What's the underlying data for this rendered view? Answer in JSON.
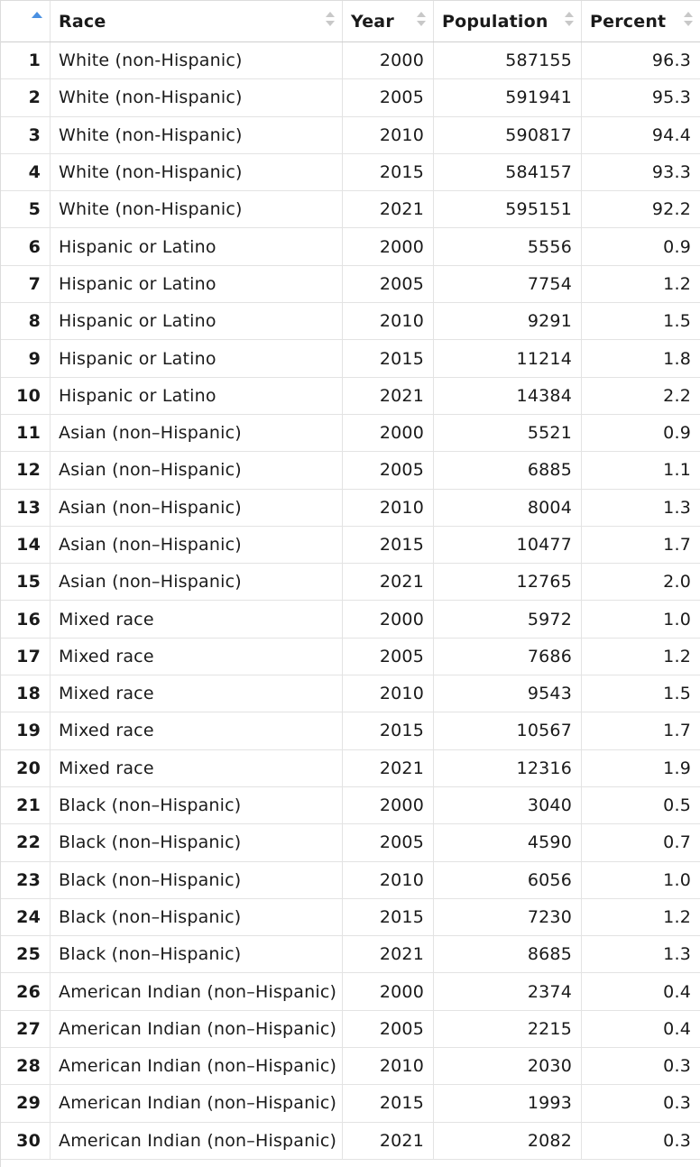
{
  "table": {
    "active_sort_color": "#4a90e2",
    "columns": [
      {
        "key": "race",
        "label": "Race"
      },
      {
        "key": "year",
        "label": "Year"
      },
      {
        "key": "population",
        "label": "Population"
      },
      {
        "key": "percent",
        "label": "Percent"
      }
    ],
    "rows": [
      {
        "n": "1",
        "race": "White (non-Hispanic)",
        "year": "2000",
        "population": "587155",
        "percent": "96.3"
      },
      {
        "n": "2",
        "race": "White (non-Hispanic)",
        "year": "2005",
        "population": "591941",
        "percent": "95.3"
      },
      {
        "n": "3",
        "race": "White (non-Hispanic)",
        "year": "2010",
        "population": "590817",
        "percent": "94.4"
      },
      {
        "n": "4",
        "race": "White (non-Hispanic)",
        "year": "2015",
        "population": "584157",
        "percent": "93.3"
      },
      {
        "n": "5",
        "race": "White (non-Hispanic)",
        "year": "2021",
        "population": "595151",
        "percent": "92.2"
      },
      {
        "n": "6",
        "race": "Hispanic or Latino",
        "year": "2000",
        "population": "5556",
        "percent": "0.9"
      },
      {
        "n": "7",
        "race": "Hispanic or Latino",
        "year": "2005",
        "population": "7754",
        "percent": "1.2"
      },
      {
        "n": "8",
        "race": "Hispanic or Latino",
        "year": "2010",
        "population": "9291",
        "percent": "1.5"
      },
      {
        "n": "9",
        "race": "Hispanic or Latino",
        "year": "2015",
        "population": "11214",
        "percent": "1.8"
      },
      {
        "n": "10",
        "race": "Hispanic or Latino",
        "year": "2021",
        "population": "14384",
        "percent": "2.2"
      },
      {
        "n": "11",
        "race": "Asian (non–Hispanic)",
        "year": "2000",
        "population": "5521",
        "percent": "0.9"
      },
      {
        "n": "12",
        "race": "Asian (non–Hispanic)",
        "year": "2005",
        "population": "6885",
        "percent": "1.1"
      },
      {
        "n": "13",
        "race": "Asian (non–Hispanic)",
        "year": "2010",
        "population": "8004",
        "percent": "1.3"
      },
      {
        "n": "14",
        "race": "Asian (non–Hispanic)",
        "year": "2015",
        "population": "10477",
        "percent": "1.7"
      },
      {
        "n": "15",
        "race": "Asian (non–Hispanic)",
        "year": "2021",
        "population": "12765",
        "percent": "2.0"
      },
      {
        "n": "16",
        "race": "Mixed race",
        "year": "2000",
        "population": "5972",
        "percent": "1.0"
      },
      {
        "n": "17",
        "race": "Mixed race",
        "year": "2005",
        "population": "7686",
        "percent": "1.2"
      },
      {
        "n": "18",
        "race": "Mixed race",
        "year": "2010",
        "population": "9543",
        "percent": "1.5"
      },
      {
        "n": "19",
        "race": "Mixed race",
        "year": "2015",
        "population": "10567",
        "percent": "1.7"
      },
      {
        "n": "20",
        "race": "Mixed race",
        "year": "2021",
        "population": "12316",
        "percent": "1.9"
      },
      {
        "n": "21",
        "race": "Black (non–Hispanic)",
        "year": "2000",
        "population": "3040",
        "percent": "0.5"
      },
      {
        "n": "22",
        "race": "Black (non–Hispanic)",
        "year": "2005",
        "population": "4590",
        "percent": "0.7"
      },
      {
        "n": "23",
        "race": "Black (non–Hispanic)",
        "year": "2010",
        "population": "6056",
        "percent": "1.0"
      },
      {
        "n": "24",
        "race": "Black (non–Hispanic)",
        "year": "2015",
        "population": "7230",
        "percent": "1.2"
      },
      {
        "n": "25",
        "race": "Black (non–Hispanic)",
        "year": "2021",
        "population": "8685",
        "percent": "1.3"
      },
      {
        "n": "26",
        "race": "American Indian (non–Hispanic)",
        "year": "2000",
        "population": "2374",
        "percent": "0.4"
      },
      {
        "n": "27",
        "race": "American Indian (non–Hispanic)",
        "year": "2005",
        "population": "2215",
        "percent": "0.4"
      },
      {
        "n": "28",
        "race": "American Indian (non–Hispanic)",
        "year": "2010",
        "population": "2030",
        "percent": "0.3"
      },
      {
        "n": "29",
        "race": "American Indian (non–Hispanic)",
        "year": "2015",
        "population": "1993",
        "percent": "0.3"
      },
      {
        "n": "30",
        "race": "American Indian (non–Hispanic)",
        "year": "2021",
        "population": "2082",
        "percent": "0.3"
      }
    ]
  }
}
